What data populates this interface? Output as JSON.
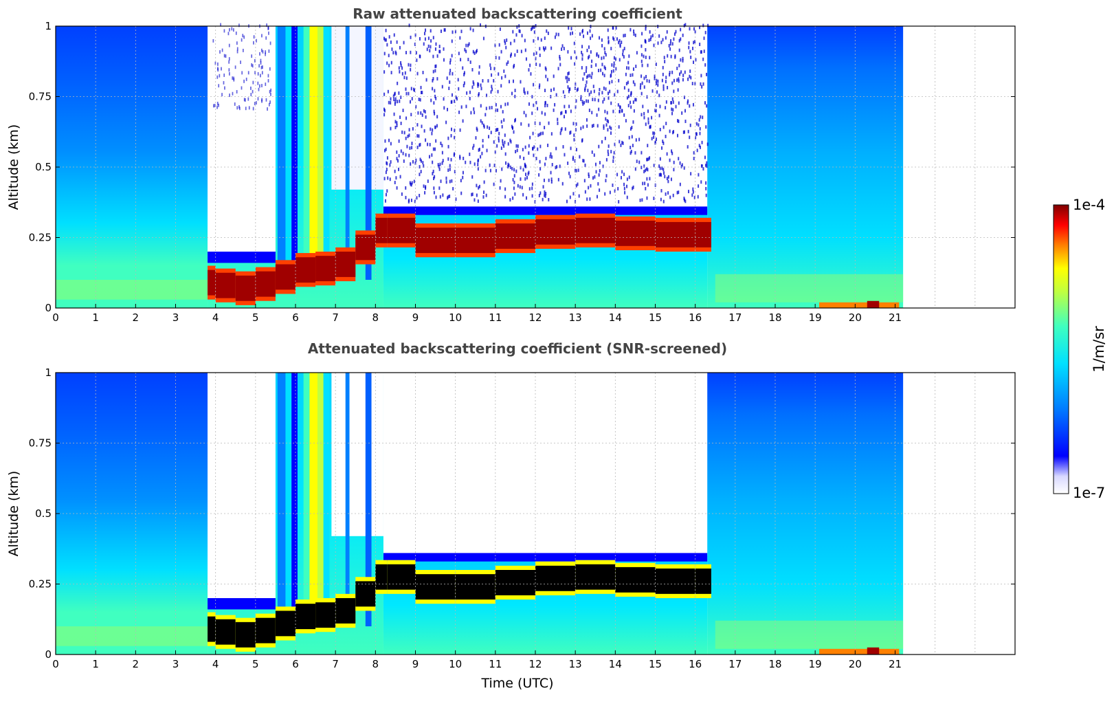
{
  "chart_data": [
    {
      "type": "heatmap",
      "title": "Raw attenuated backscattering coefficient",
      "xlabel": "",
      "ylabel": "Altitude (km)",
      "xlim": [
        0,
        24
      ],
      "ylim": [
        0,
        1
      ],
      "x_ticks": [
        "0",
        "1",
        "2",
        "3",
        "4",
        "5",
        "6",
        "7",
        "8",
        "9",
        "10",
        "11",
        "12",
        "13",
        "14",
        "15",
        "16",
        "17",
        "18",
        "19",
        "20",
        "21"
      ],
      "y_ticks": [
        "0",
        "0.25",
        "0.5",
        "0.75",
        "1"
      ],
      "grid": true,
      "data_end_time": 21.2,
      "colormap": "jet",
      "snr_screened": false,
      "layer_profile": {
        "time": [
          0,
          3.8,
          4.0,
          4.5,
          5.0,
          5.5,
          6.0,
          6.5,
          7.0,
          7.5,
          8.0,
          8.3,
          9.0,
          10.0,
          11.0,
          12.0,
          13.0,
          14.0,
          15.0,
          16.0,
          16.4
        ],
        "layer_center_km": [
          0,
          0.09,
          0.09,
          0.07,
          0.07,
          0.1,
          0.12,
          0.15,
          0.13,
          0.18,
          0.25,
          0.3,
          0.25,
          0.23,
          0.25,
          0.26,
          0.28,
          0.27,
          0.26,
          0.26,
          0.26
        ]
      }
    },
    {
      "type": "heatmap",
      "title": "Attenuated backscattering coefficient (SNR-screened)",
      "xlabel": "Time (UTC)",
      "ylabel": "Altitude (km)",
      "xlim": [
        0,
        24
      ],
      "ylim": [
        0,
        1
      ],
      "x_ticks": [
        "0",
        "1",
        "2",
        "3",
        "4",
        "5",
        "6",
        "7",
        "8",
        "9",
        "10",
        "11",
        "12",
        "13",
        "14",
        "15",
        "16",
        "17",
        "18",
        "19",
        "20",
        "21"
      ],
      "y_ticks": [
        "0",
        "0.25",
        "0.5",
        "0.75",
        "1"
      ],
      "grid": true,
      "data_end_time": 21.2,
      "colormap": "jet",
      "snr_screened": true
    }
  ],
  "colorbar": {
    "label": "1/m/sr",
    "max_label": "1e-4",
    "min_label": "1e-7",
    "colors": [
      "#e8e8ff",
      "#0000ff",
      "#0080ff",
      "#00e0ff",
      "#40ffbf",
      "#c0ff40",
      "#ffff00",
      "#ff8000",
      "#ff0000",
      "#800000"
    ]
  }
}
